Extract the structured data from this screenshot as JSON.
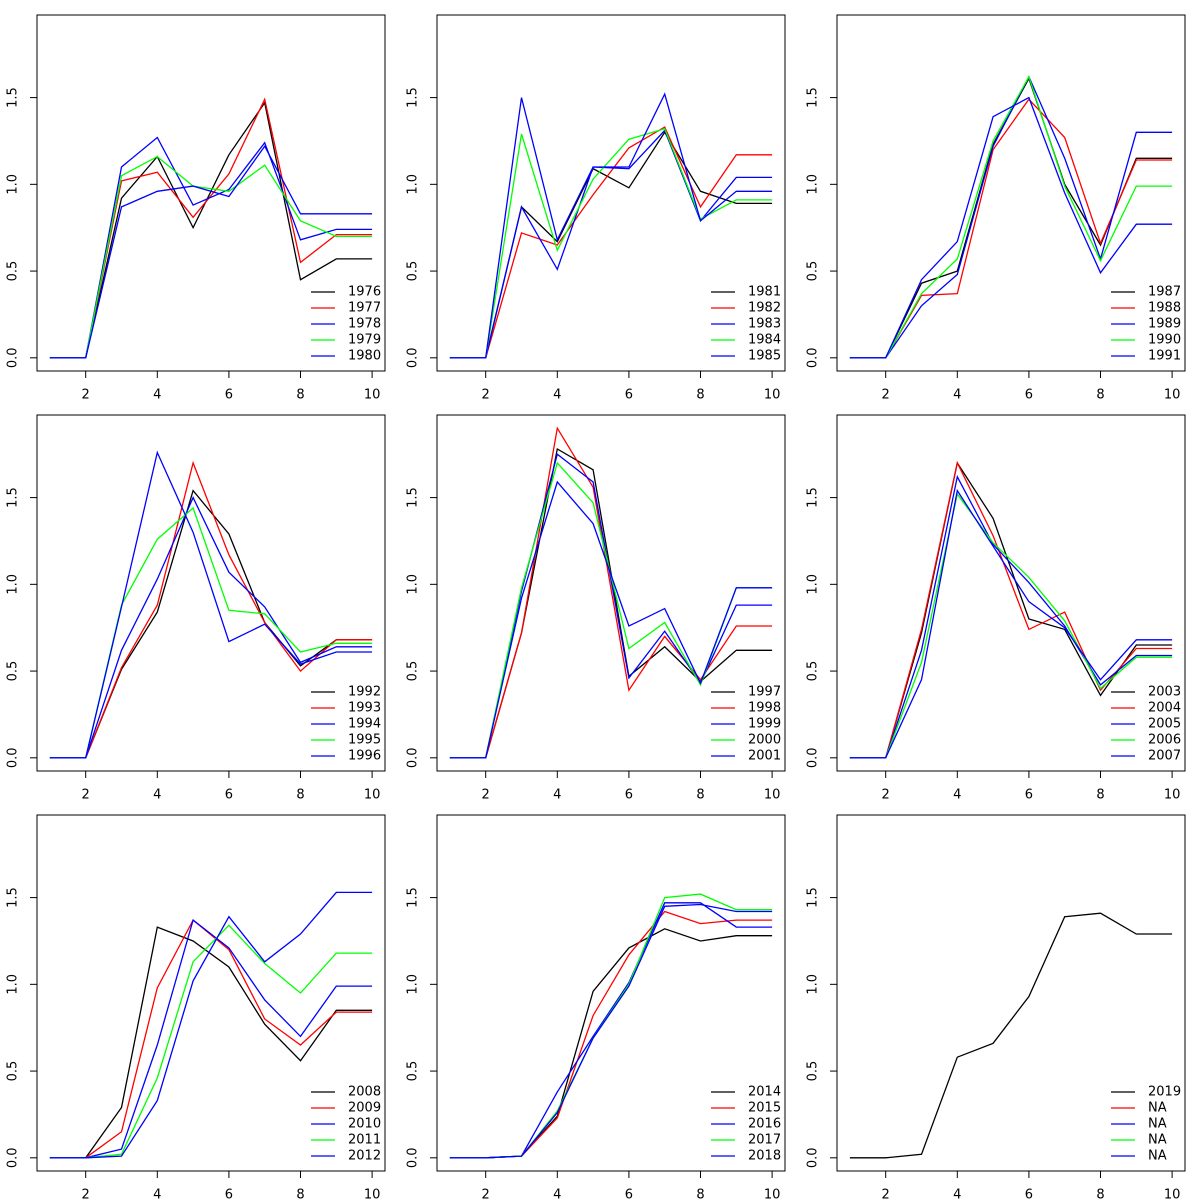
{
  "chart_data": [
    {
      "type": "line",
      "x": [
        1,
        2,
        3,
        4,
        5,
        6,
        7,
        8,
        9,
        10
      ],
      "xlim": [
        0.64,
        10.36
      ],
      "xticks": [
        2,
        4,
        6,
        8,
        10
      ],
      "ylim": [
        -0.076,
        1.976
      ],
      "yticks": [
        {
          "value": 0,
          "label": "0.0"
        },
        {
          "value": 0.5,
          "label": "0.5"
        },
        {
          "value": 1,
          "label": "1.0"
        },
        {
          "value": 1.5,
          "label": "1.5"
        }
      ],
      "legend": "bottomright",
      "series": [
        {
          "name": "1976",
          "color": "#000000",
          "values": [
            0,
            0,
            0.92,
            1.16,
            0.75,
            1.17,
            1.47,
            0.45,
            0.57,
            0.57
          ]
        },
        {
          "name": "1977",
          "color": "#ff0000",
          "values": [
            0,
            0,
            1.02,
            1.07,
            0.81,
            1.06,
            1.49,
            0.55,
            0.71,
            0.71
          ]
        },
        {
          "name": "1978",
          "color": "#0000ff",
          "values": [
            0,
            0,
            1.1,
            1.27,
            0.88,
            0.97,
            1.24,
            0.68,
            0.74,
            0.74
          ]
        },
        {
          "name": "1979",
          "color": "#00ff00",
          "values": [
            0,
            0,
            1.05,
            1.16,
            0.99,
            0.96,
            1.11,
            0.79,
            0.7,
            0.7
          ]
        },
        {
          "name": "1980",
          "color": "#0000ff",
          "values": [
            0,
            0,
            0.87,
            0.96,
            0.99,
            0.93,
            1.22,
            0.83,
            0.83,
            0.83
          ]
        }
      ]
    },
    {
      "type": "line",
      "x": [
        1,
        2,
        3,
        4,
        5,
        6,
        7,
        8,
        9,
        10
      ],
      "xlim": [
        0.64,
        10.36
      ],
      "xticks": [
        2,
        4,
        6,
        8,
        10
      ],
      "ylim": [
        -0.076,
        1.976
      ],
      "yticks": [
        {
          "value": 0,
          "label": "0.0"
        },
        {
          "value": 0.5,
          "label": "0.5"
        },
        {
          "value": 1,
          "label": "1.0"
        },
        {
          "value": 1.5,
          "label": "1.5"
        }
      ],
      "legend": "bottomright",
      "series": [
        {
          "name": "1981",
          "color": "#000000",
          "values": [
            0,
            0,
            0.87,
            0.67,
            1.09,
            0.98,
            1.3,
            0.96,
            0.89,
            0.89
          ]
        },
        {
          "name": "1982",
          "color": "#ff0000",
          "values": [
            0,
            0,
            0.72,
            0.65,
            0.94,
            1.21,
            1.33,
            0.87,
            1.17,
            1.17
          ]
        },
        {
          "name": "1983",
          "color": "#0000ff",
          "values": [
            0,
            0,
            0.87,
            0.51,
            1.1,
            1.09,
            1.31,
            0.79,
            1.04,
            1.04
          ]
        },
        {
          "name": "1984",
          "color": "#00ff00",
          "values": [
            0,
            0,
            1.29,
            0.62,
            1.03,
            1.26,
            1.32,
            0.8,
            0.91,
            0.91
          ]
        },
        {
          "name": "1985",
          "color": "#0000ff",
          "values": [
            0,
            0,
            1.5,
            0.68,
            1.1,
            1.1,
            1.52,
            0.79,
            0.96,
            0.96
          ]
        }
      ]
    },
    {
      "type": "line",
      "x": [
        1,
        2,
        3,
        4,
        5,
        6,
        7,
        8,
        9,
        10
      ],
      "xlim": [
        0.64,
        10.36
      ],
      "xticks": [
        2,
        4,
        6,
        8,
        10
      ],
      "ylim": [
        -0.076,
        1.976
      ],
      "yticks": [
        {
          "value": 0,
          "label": "0.0"
        },
        {
          "value": 0.5,
          "label": "0.5"
        },
        {
          "value": 1,
          "label": "1.0"
        },
        {
          "value": 1.5,
          "label": "1.5"
        }
      ],
      "legend": "bottomright",
      "series": [
        {
          "name": "1987",
          "color": "#000000",
          "values": [
            0,
            0,
            0.43,
            0.5,
            1.23,
            1.61,
            1.0,
            0.65,
            1.15,
            1.15
          ]
        },
        {
          "name": "1988",
          "color": "#ff0000",
          "values": [
            0,
            0,
            0.36,
            0.37,
            1.2,
            1.49,
            1.27,
            0.66,
            1.14,
            1.14
          ]
        },
        {
          "name": "1989",
          "color": "#0000ff",
          "values": [
            0,
            0,
            0.3,
            0.48,
            1.22,
            1.62,
            1.15,
            0.57,
            1.3,
            1.3
          ]
        },
        {
          "name": "1990",
          "color": "#00ff00",
          "values": [
            0,
            0,
            0.37,
            0.57,
            1.25,
            1.62,
            0.99,
            0.56,
            0.99,
            0.99
          ]
        },
        {
          "name": "1991",
          "color": "#0000ff",
          "values": [
            0,
            0,
            0.45,
            0.67,
            1.39,
            1.5,
            0.95,
            0.49,
            0.77,
            0.77
          ]
        }
      ]
    },
    {
      "type": "line",
      "x": [
        1,
        2,
        3,
        4,
        5,
        6,
        7,
        8,
        9,
        10
      ],
      "xlim": [
        0.64,
        10.36
      ],
      "xticks": [
        2,
        4,
        6,
        8,
        10
      ],
      "ylim": [
        -0.076,
        1.976
      ],
      "yticks": [
        {
          "value": 0,
          "label": "0.0"
        },
        {
          "value": 0.5,
          "label": "0.5"
        },
        {
          "value": 1,
          "label": "1.0"
        },
        {
          "value": 1.5,
          "label": "1.5"
        }
      ],
      "legend": "bottomright",
      "series": [
        {
          "name": "1992",
          "color": "#000000",
          "values": [
            0,
            0,
            0.51,
            0.84,
            1.54,
            1.29,
            0.78,
            0.53,
            0.68,
            0.68
          ]
        },
        {
          "name": "1993",
          "color": "#ff0000",
          "values": [
            0,
            0,
            0.52,
            0.88,
            1.7,
            1.17,
            0.78,
            0.5,
            0.68,
            0.68
          ]
        },
        {
          "name": "1994",
          "color": "#0000ff",
          "values": [
            0,
            0,
            0.62,
            1.03,
            1.5,
            1.07,
            0.87,
            0.55,
            0.64,
            0.64
          ]
        },
        {
          "name": "1995",
          "color": "#00ff00",
          "values": [
            0,
            0,
            0.88,
            1.26,
            1.44,
            0.85,
            0.83,
            0.61,
            0.66,
            0.66
          ]
        },
        {
          "name": "1996",
          "color": "#0000ff",
          "values": [
            0,
            0,
            0.87,
            1.76,
            1.3,
            0.67,
            0.77,
            0.54,
            0.61,
            0.61
          ]
        }
      ]
    },
    {
      "type": "line",
      "x": [
        1,
        2,
        3,
        4,
        5,
        6,
        7,
        8,
        9,
        10
      ],
      "xlim": [
        0.64,
        10.36
      ],
      "xticks": [
        2,
        4,
        6,
        8,
        10
      ],
      "ylim": [
        -0.076,
        1.976
      ],
      "yticks": [
        {
          "value": 0,
          "label": "0.0"
        },
        {
          "value": 0.5,
          "label": "0.5"
        },
        {
          "value": 1,
          "label": "1.0"
        },
        {
          "value": 1.5,
          "label": "1.5"
        }
      ],
      "legend": "bottomright",
      "series": [
        {
          "name": "1997",
          "color": "#000000",
          "values": [
            0,
            0,
            0.72,
            1.78,
            1.66,
            0.47,
            0.64,
            0.44,
            0.62,
            0.62
          ]
        },
        {
          "name": "1998",
          "color": "#ff0000",
          "values": [
            0,
            0,
            0.72,
            1.9,
            1.56,
            0.39,
            0.7,
            0.45,
            0.76,
            0.76
          ]
        },
        {
          "name": "1999",
          "color": "#0000ff",
          "values": [
            0,
            0,
            0.96,
            1.75,
            1.59,
            0.46,
            0.73,
            0.43,
            0.88,
            0.88
          ]
        },
        {
          "name": "2000",
          "color": "#00ff00",
          "values": [
            0,
            0,
            0.98,
            1.7,
            1.47,
            0.63,
            0.78,
            0.42,
            0.98,
            0.98
          ]
        },
        {
          "name": "2001",
          "color": "#0000ff",
          "values": [
            0,
            0,
            0.92,
            1.59,
            1.35,
            0.76,
            0.86,
            0.43,
            0.98,
            0.98
          ]
        }
      ]
    },
    {
      "type": "line",
      "x": [
        1,
        2,
        3,
        4,
        5,
        6,
        7,
        8,
        9,
        10
      ],
      "xlim": [
        0.64,
        10.36
      ],
      "xticks": [
        2,
        4,
        6,
        8,
        10
      ],
      "ylim": [
        -0.076,
        1.976
      ],
      "yticks": [
        {
          "value": 0,
          "label": "0.0"
        },
        {
          "value": 0.5,
          "label": "0.5"
        },
        {
          "value": 1,
          "label": "1.0"
        },
        {
          "value": 1.5,
          "label": "1.5"
        }
      ],
      "legend": "bottomright",
      "series": [
        {
          "name": "2003",
          "color": "#000000",
          "values": [
            0,
            0,
            0.72,
            1.7,
            1.38,
            0.8,
            0.74,
            0.36,
            0.65,
            0.65
          ]
        },
        {
          "name": "2004",
          "color": "#ff0000",
          "values": [
            0,
            0,
            0.74,
            1.7,
            1.28,
            0.74,
            0.84,
            0.39,
            0.63,
            0.63
          ]
        },
        {
          "name": "2005",
          "color": "#0000ff",
          "values": [
            0,
            0,
            0.62,
            1.62,
            1.23,
            1.01,
            0.76,
            0.42,
            0.59,
            0.59
          ]
        },
        {
          "name": "2006",
          "color": "#00ff00",
          "values": [
            0,
            0,
            0.55,
            1.52,
            1.24,
            1.04,
            0.79,
            0.4,
            0.58,
            0.58
          ]
        },
        {
          "name": "2007",
          "color": "#0000ff",
          "values": [
            0,
            0,
            0.45,
            1.54,
            1.22,
            0.9,
            0.75,
            0.45,
            0.68,
            0.68
          ]
        }
      ]
    },
    {
      "type": "line",
      "x": [
        1,
        2,
        3,
        4,
        5,
        6,
        7,
        8,
        9,
        10
      ],
      "xlim": [
        0.64,
        10.36
      ],
      "xticks": [
        2,
        4,
        6,
        8,
        10
      ],
      "ylim": [
        -0.076,
        1.976
      ],
      "yticks": [
        {
          "value": 0,
          "label": "0.0"
        },
        {
          "value": 0.5,
          "label": "0.5"
        },
        {
          "value": 1,
          "label": "1.0"
        },
        {
          "value": 1.5,
          "label": "1.5"
        }
      ],
      "legend": "bottomright",
      "series": [
        {
          "name": "2008",
          "color": "#000000",
          "values": [
            0,
            0,
            0.29,
            1.33,
            1.25,
            1.1,
            0.77,
            0.56,
            0.85,
            0.85
          ]
        },
        {
          "name": "2009",
          "color": "#ff0000",
          "values": [
            0,
            0,
            0.15,
            0.98,
            1.37,
            1.2,
            0.8,
            0.65,
            0.84,
            0.84
          ]
        },
        {
          "name": "2010",
          "color": "#0000ff",
          "values": [
            0,
            0,
            0.05,
            0.65,
            1.37,
            1.21,
            0.91,
            0.7,
            0.99,
            0.99
          ]
        },
        {
          "name": "2011",
          "color": "#00ff00",
          "values": [
            0,
            0,
            0.02,
            0.46,
            1.13,
            1.34,
            1.12,
            0.95,
            1.18,
            1.18
          ]
        },
        {
          "name": "2012",
          "color": "#0000ff",
          "values": [
            0,
            0,
            0.01,
            0.33,
            1.02,
            1.39,
            1.13,
            1.29,
            1.53,
            1.53
          ]
        }
      ]
    },
    {
      "type": "line",
      "x": [
        1,
        2,
        3,
        4,
        5,
        6,
        7,
        8,
        9,
        10
      ],
      "xlim": [
        0.64,
        10.36
      ],
      "xticks": [
        2,
        4,
        6,
        8,
        10
      ],
      "ylim": [
        -0.076,
        1.976
      ],
      "yticks": [
        {
          "value": 0,
          "label": "0.0"
        },
        {
          "value": 0.5,
          "label": "0.5"
        },
        {
          "value": 1,
          "label": "1.0"
        },
        {
          "value": 1.5,
          "label": "1.5"
        }
      ],
      "legend": "bottomright",
      "series": [
        {
          "name": "2014",
          "color": "#000000",
          "values": [
            0,
            0,
            0.01,
            0.24,
            0.96,
            1.21,
            1.32,
            1.25,
            1.28,
            1.28
          ]
        },
        {
          "name": "2015",
          "color": "#ff0000",
          "values": [
            0,
            0,
            0.01,
            0.23,
            0.82,
            1.17,
            1.42,
            1.35,
            1.37,
            1.37
          ]
        },
        {
          "name": "2016",
          "color": "#0000ff",
          "values": [
            0,
            0,
            0.01,
            0.38,
            0.7,
            1.01,
            1.47,
            1.47,
            1.33,
            1.33
          ]
        },
        {
          "name": "2017",
          "color": "#00ff00",
          "values": [
            0,
            0,
            0.01,
            0.27,
            0.69,
            1.0,
            1.5,
            1.52,
            1.43,
            1.43
          ]
        },
        {
          "name": "2018",
          "color": "#0000ff",
          "values": [
            0,
            0,
            0.01,
            0.26,
            0.69,
            0.99,
            1.45,
            1.46,
            1.42,
            1.42
          ]
        }
      ]
    },
    {
      "type": "line",
      "x": [
        1,
        2,
        3,
        4,
        5,
        6,
        7,
        8,
        9,
        10
      ],
      "xlim": [
        0.64,
        10.36
      ],
      "xticks": [
        2,
        4,
        6,
        8,
        10
      ],
      "ylim": [
        -0.076,
        1.976
      ],
      "yticks": [
        {
          "value": 0,
          "label": "0.0"
        },
        {
          "value": 0.5,
          "label": "0.5"
        },
        {
          "value": 1,
          "label": "1.0"
        },
        {
          "value": 1.5,
          "label": "1.5"
        }
      ],
      "legend": "bottomright",
      "series": [
        {
          "name": "2019",
          "color": "#000000",
          "values": [
            0,
            0,
            0.02,
            0.58,
            0.66,
            0.93,
            1.39,
            1.41,
            1.29,
            1.29
          ]
        },
        {
          "name": "NA",
          "color": "#ff0000",
          "values": [
            null,
            null,
            null,
            null,
            null,
            null,
            null,
            null,
            null,
            null
          ]
        },
        {
          "name": "NA",
          "color": "#0000ff",
          "values": [
            null,
            null,
            null,
            null,
            null,
            null,
            null,
            null,
            null,
            null
          ]
        },
        {
          "name": "NA",
          "color": "#00ff00",
          "values": [
            null,
            null,
            null,
            null,
            null,
            null,
            null,
            null,
            null,
            null
          ]
        },
        {
          "name": "NA",
          "color": "#0000ff",
          "values": [
            null,
            null,
            null,
            null,
            null,
            null,
            null,
            null,
            null,
            null
          ]
        }
      ]
    }
  ]
}
